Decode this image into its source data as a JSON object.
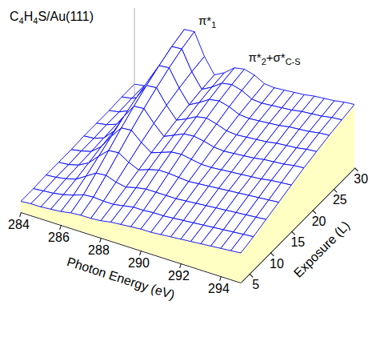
{
  "chart_data": {
    "type": "surface",
    "title": "C4H4S/Au(111)",
    "x_label": "Photon Energy (eV)",
    "y_label": "Exposure (L)",
    "color": "#0000ff",
    "annotations": [
      {
        "text": "π*1"
      },
      {
        "text": "π*2+σ*C-S"
      }
    ],
    "x": [
      284,
      284.5,
      285,
      285.5,
      286,
      286.5,
      287,
      287.5,
      288,
      288.5,
      289,
      289.5,
      290,
      290.5,
      291,
      291.5,
      292,
      292.5,
      293,
      293.5,
      294,
      294.5,
      295
    ],
    "y": [
      3,
      6,
      9,
      12,
      15,
      18,
      21,
      24,
      27,
      30
    ],
    "z": [
      [
        0.12,
        0.13,
        0.13,
        0.14,
        0.15,
        0.17,
        0.18,
        0.18,
        0.19,
        0.21,
        0.22,
        0.23,
        0.24,
        0.24,
        0.25,
        0.26,
        0.27,
        0.28,
        0.29,
        0.3,
        0.31,
        0.32,
        0.33
      ],
      [
        0.12,
        0.13,
        0.14,
        0.16,
        0.19,
        0.23,
        0.24,
        0.23,
        0.23,
        0.25,
        0.27,
        0.27,
        0.28,
        0.28,
        0.29,
        0.3,
        0.31,
        0.32,
        0.33,
        0.34,
        0.35,
        0.36,
        0.37
      ],
      [
        0.13,
        0.14,
        0.16,
        0.19,
        0.26,
        0.33,
        0.34,
        0.3,
        0.28,
        0.31,
        0.33,
        0.33,
        0.33,
        0.33,
        0.34,
        0.35,
        0.36,
        0.37,
        0.38,
        0.39,
        0.4,
        0.41,
        0.42
      ],
      [
        0.13,
        0.14,
        0.17,
        0.23,
        0.34,
        0.44,
        0.45,
        0.38,
        0.33,
        0.37,
        0.4,
        0.4,
        0.39,
        0.38,
        0.39,
        0.4,
        0.41,
        0.42,
        0.43,
        0.44,
        0.45,
        0.46,
        0.47
      ],
      [
        0.13,
        0.15,
        0.18,
        0.27,
        0.42,
        0.55,
        0.56,
        0.46,
        0.38,
        0.42,
        0.46,
        0.47,
        0.45,
        0.43,
        0.43,
        0.44,
        0.45,
        0.46,
        0.47,
        0.48,
        0.5,
        0.51,
        0.52
      ],
      [
        0.14,
        0.15,
        0.19,
        0.3,
        0.5,
        0.65,
        0.66,
        0.53,
        0.42,
        0.47,
        0.52,
        0.53,
        0.51,
        0.48,
        0.47,
        0.48,
        0.49,
        0.5,
        0.52,
        0.53,
        0.54,
        0.56,
        0.57
      ],
      [
        0.14,
        0.16,
        0.2,
        0.33,
        0.57,
        0.74,
        0.75,
        0.59,
        0.46,
        0.51,
        0.57,
        0.59,
        0.56,
        0.52,
        0.51,
        0.52,
        0.53,
        0.54,
        0.56,
        0.57,
        0.58,
        0.6,
        0.61
      ],
      [
        0.14,
        0.16,
        0.21,
        0.36,
        0.63,
        0.82,
        0.83,
        0.64,
        0.49,
        0.55,
        0.62,
        0.64,
        0.61,
        0.56,
        0.55,
        0.56,
        0.57,
        0.58,
        0.6,
        0.61,
        0.62,
        0.64,
        0.65
      ],
      [
        0.15,
        0.17,
        0.22,
        0.38,
        0.68,
        0.89,
        0.9,
        0.68,
        0.52,
        0.58,
        0.66,
        0.68,
        0.65,
        0.59,
        0.58,
        0.59,
        0.6,
        0.61,
        0.63,
        0.64,
        0.65,
        0.67,
        0.68
      ],
      [
        0.15,
        0.17,
        0.22,
        0.4,
        0.72,
        0.94,
        0.95,
        0.71,
        0.54,
        0.6,
        0.69,
        0.71,
        0.68,
        0.62,
        0.61,
        0.62,
        0.63,
        0.64,
        0.66,
        0.67,
        0.68,
        0.7,
        0.71
      ]
    ],
    "xlim": [
      284,
      295
    ],
    "ylim": [
      3,
      30
    ],
    "zlim": [
      0,
      1
    ],
    "xticks": [
      284,
      286,
      288,
      290,
      292,
      294
    ],
    "yticks": [
      5,
      10,
      15,
      20,
      25,
      30
    ]
  }
}
